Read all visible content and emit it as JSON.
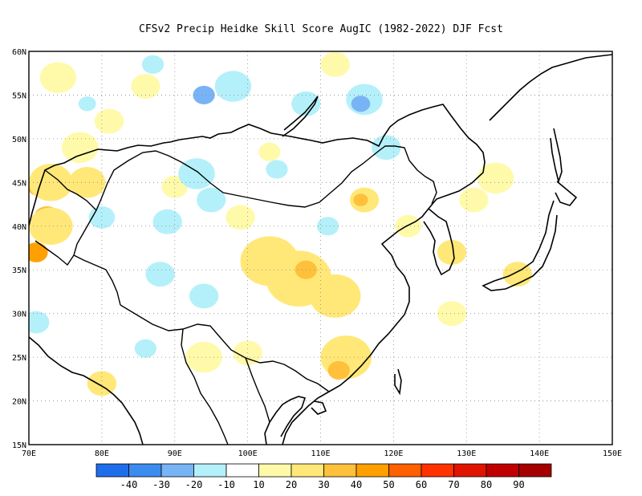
{
  "title": "CFSv2 Precip Heidke Skill Score AugIC (1982-2022) DJF Fcst",
  "map": {
    "lon_range": [
      70,
      150
    ],
    "lat_range": [
      15,
      60
    ],
    "lon_ticks": [
      "70E",
      "80E",
      "90E",
      "100E",
      "110E",
      "120E",
      "130E",
      "140E",
      "150E"
    ],
    "lat_ticks": [
      "15N",
      "20N",
      "25N",
      "30N",
      "35N",
      "40N",
      "45N",
      "50N",
      "55N",
      "60N"
    ],
    "grid": "dotted"
  },
  "colorbar": {
    "colors": [
      "#1e6eeb",
      "#3c8cf0",
      "#78b4f5",
      "#b4f0fa",
      "#ffffff",
      "#fffaaa",
      "#ffe878",
      "#ffc03c",
      "#ffa000",
      "#ff6000",
      "#ff3200",
      "#e11400",
      "#c00000",
      "#a50000"
    ],
    "labels": [
      "-40",
      "-30",
      "-20",
      "-10",
      "10",
      "20",
      "30",
      "40",
      "50",
      "60",
      "70",
      "80",
      "90"
    ]
  },
  "regions": [
    {
      "lon": 71.5,
      "lat": 44.7,
      "r": 1.8,
      "level": "30"
    },
    {
      "lon": 72.5,
      "lat": 41.0,
      "r": 1.8,
      "level": "30"
    },
    {
      "lon": 71.0,
      "lat": 37.0,
      "r": 1.6,
      "level": "40"
    },
    {
      "lon": 73.0,
      "lat": 45.0,
      "r": 3.0,
      "level": "20"
    },
    {
      "lon": 73.0,
      "lat": 40.0,
      "r": 3.0,
      "level": "20"
    },
    {
      "lon": 78.0,
      "lat": 45.0,
      "r": 2.5,
      "level": "20"
    },
    {
      "lon": 77.0,
      "lat": 49.0,
      "r": 2.5,
      "level": "10"
    },
    {
      "lon": 74.0,
      "lat": 57.0,
      "r": 2.5,
      "level": "10"
    },
    {
      "lon": 81.0,
      "lat": 52.0,
      "r": 2.0,
      "level": "10"
    },
    {
      "lon": 86.0,
      "lat": 56.0,
      "r": 2.0,
      "level": "10"
    },
    {
      "lon": 90.0,
      "lat": 44.5,
      "r": 1.8,
      "level": "10"
    },
    {
      "lon": 103.0,
      "lat": 48.5,
      "r": 1.5,
      "level": "10"
    },
    {
      "lon": 103.0,
      "lat": 36.0,
      "r": 4.0,
      "level": "20"
    },
    {
      "lon": 107.0,
      "lat": 34.0,
      "r": 4.5,
      "level": "20"
    },
    {
      "lon": 108.0,
      "lat": 35.0,
      "r": 1.5,
      "level": "30"
    },
    {
      "lon": 112.0,
      "lat": 32.0,
      "r": 3.5,
      "level": "20"
    },
    {
      "lon": 116.0,
      "lat": 43.0,
      "r": 2.0,
      "level": "20"
    },
    {
      "lon": 115.5,
      "lat": 43.0,
      "r": 1.0,
      "level": "30"
    },
    {
      "lon": 113.5,
      "lat": 25.0,
      "r": 3.5,
      "level": "20"
    },
    {
      "lon": 112.5,
      "lat": 23.5,
      "r": 1.5,
      "level": "30"
    },
    {
      "lon": 100.0,
      "lat": 25.5,
      "r": 2.0,
      "level": "10"
    },
    {
      "lon": 94.0,
      "lat": 25.0,
      "r": 2.5,
      "level": "10"
    },
    {
      "lon": 80.0,
      "lat": 22.0,
      "r": 2.0,
      "level": "20"
    },
    {
      "lon": 128.0,
      "lat": 37.0,
      "r": 2.0,
      "level": "20"
    },
    {
      "lon": 134.0,
      "lat": 45.5,
      "r": 2.5,
      "level": "10"
    },
    {
      "lon": 131.0,
      "lat": 43.0,
      "r": 2.0,
      "level": "10"
    },
    {
      "lon": 137.0,
      "lat": 34.5,
      "r": 2.0,
      "level": "20"
    },
    {
      "lon": 128.0,
      "lat": 30.0,
      "r": 2.0,
      "level": "10"
    },
    {
      "lon": 122.0,
      "lat": 40.0,
      "r": 1.8,
      "level": "10"
    },
    {
      "lon": 112.0,
      "lat": 58.5,
      "r": 2.0,
      "level": "10"
    },
    {
      "lon": 99.0,
      "lat": 41.0,
      "r": 2.0,
      "level": "10"
    },
    {
      "lon": 89.0,
      "lat": 40.5,
      "r": 2.0,
      "level": "-10"
    },
    {
      "lon": 93.0,
      "lat": 46.0,
      "r": 2.5,
      "level": "-10"
    },
    {
      "lon": 95.0,
      "lat": 43.0,
      "r": 2.0,
      "level": "-10"
    },
    {
      "lon": 98.0,
      "lat": 56.0,
      "r": 2.5,
      "level": "-10"
    },
    {
      "lon": 94.0,
      "lat": 55.0,
      "r": 1.5,
      "level": "-20"
    },
    {
      "lon": 116.0,
      "lat": 54.5,
      "r": 2.5,
      "level": "-10"
    },
    {
      "lon": 115.5,
      "lat": 54.0,
      "r": 1.3,
      "level": "-20"
    },
    {
      "lon": 119.0,
      "lat": 49.0,
      "r": 2.0,
      "level": "-10"
    },
    {
      "lon": 108.0,
      "lat": 54.0,
      "r": 2.0,
      "level": "-10"
    },
    {
      "lon": 88.0,
      "lat": 34.5,
      "r": 2.0,
      "level": "-10"
    },
    {
      "lon": 94.0,
      "lat": 32.0,
      "r": 2.0,
      "level": "-10"
    },
    {
      "lon": 86.0,
      "lat": 26.0,
      "r": 1.5,
      "level": "-10"
    },
    {
      "lon": 71.0,
      "lat": 29.0,
      "r": 1.8,
      "level": "-10"
    },
    {
      "lon": 87.0,
      "lat": 58.5,
      "r": 1.5,
      "level": "-10"
    },
    {
      "lon": 78.0,
      "lat": 54.0,
      "r": 1.2,
      "level": "-10"
    },
    {
      "lon": 111.0,
      "lat": 40.0,
      "r": 1.5,
      "level": "-10"
    },
    {
      "lon": 104.0,
      "lat": 46.5,
      "r": 1.5,
      "level": "-10"
    },
    {
      "lon": 80.0,
      "lat": 41.0,
      "r": 1.8,
      "level": "-10"
    }
  ]
}
